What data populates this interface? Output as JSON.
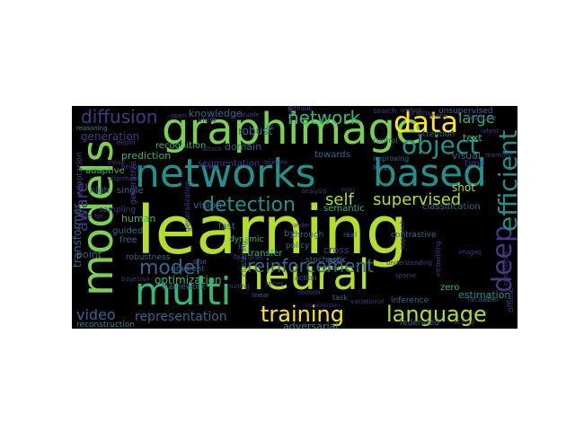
{
  "palette": {
    "background": "#000000",
    "page": "#ffffff",
    "yellow_green": "#b5de2b",
    "light_green": "#7ad151",
    "green": "#35b779",
    "teal": "#21918c",
    "blue": "#31688e",
    "indigo": "#443983",
    "purple": "#440154",
    "yellow": "#fde725"
  },
  "words": [
    "learning",
    "neural",
    "networks",
    "based",
    "models",
    "graph",
    "image",
    "multi",
    "deep",
    "efficient",
    "data",
    "object",
    "diffusion",
    "detection",
    "network",
    "language",
    "training",
    "model",
    "reinforcement",
    "self",
    "supervised",
    "video",
    "representation",
    "large",
    "aware",
    "transformer",
    "adversarial",
    "optimization",
    "knowledge",
    "generation",
    "prediction",
    "recognition",
    "segmentation",
    "robust",
    "domain",
    "semantic",
    "towards",
    "text",
    "visual",
    "time",
    "shot",
    "cross",
    "classification",
    "human",
    "point",
    "fast",
    "policy",
    "vision",
    "transfer",
    "features",
    "estimation",
    "unsupervised",
    "feature",
    "attention",
    "zero",
    "inference",
    "federated",
    "scene",
    "offline",
    "reconstruction",
    "adaptive",
    "stochastic",
    "gradient",
    "framework",
    "dynamic",
    "single",
    "guided",
    "free",
    "robustness",
    "high",
    "adaptation",
    "clustering",
    "contrastive",
    "sampling",
    "generative",
    "label",
    "face",
    "agent",
    "meta",
    "real",
    "images",
    "synthesis",
    "level",
    "control",
    "improving",
    "search",
    "latent",
    "memory",
    "task",
    "action",
    "motion",
    "view",
    "cloud",
    "reasoning",
    "depth",
    "one",
    "linear",
    "variational",
    "class",
    "approach",
    "understanding",
    "bayesian",
    "generalization",
    "mixture",
    "continuous",
    "sparse",
    "embedding",
    "shape",
    "tuning",
    "series",
    "attack",
    "fields",
    "beyond",
    "compression",
    "alignment",
    "open",
    "scalable",
    "without",
    "unified",
    "graphs",
    "under",
    "through",
    "non",
    "analysis",
    "pre",
    "is",
    "by",
    "as",
    "for"
  ]
}
